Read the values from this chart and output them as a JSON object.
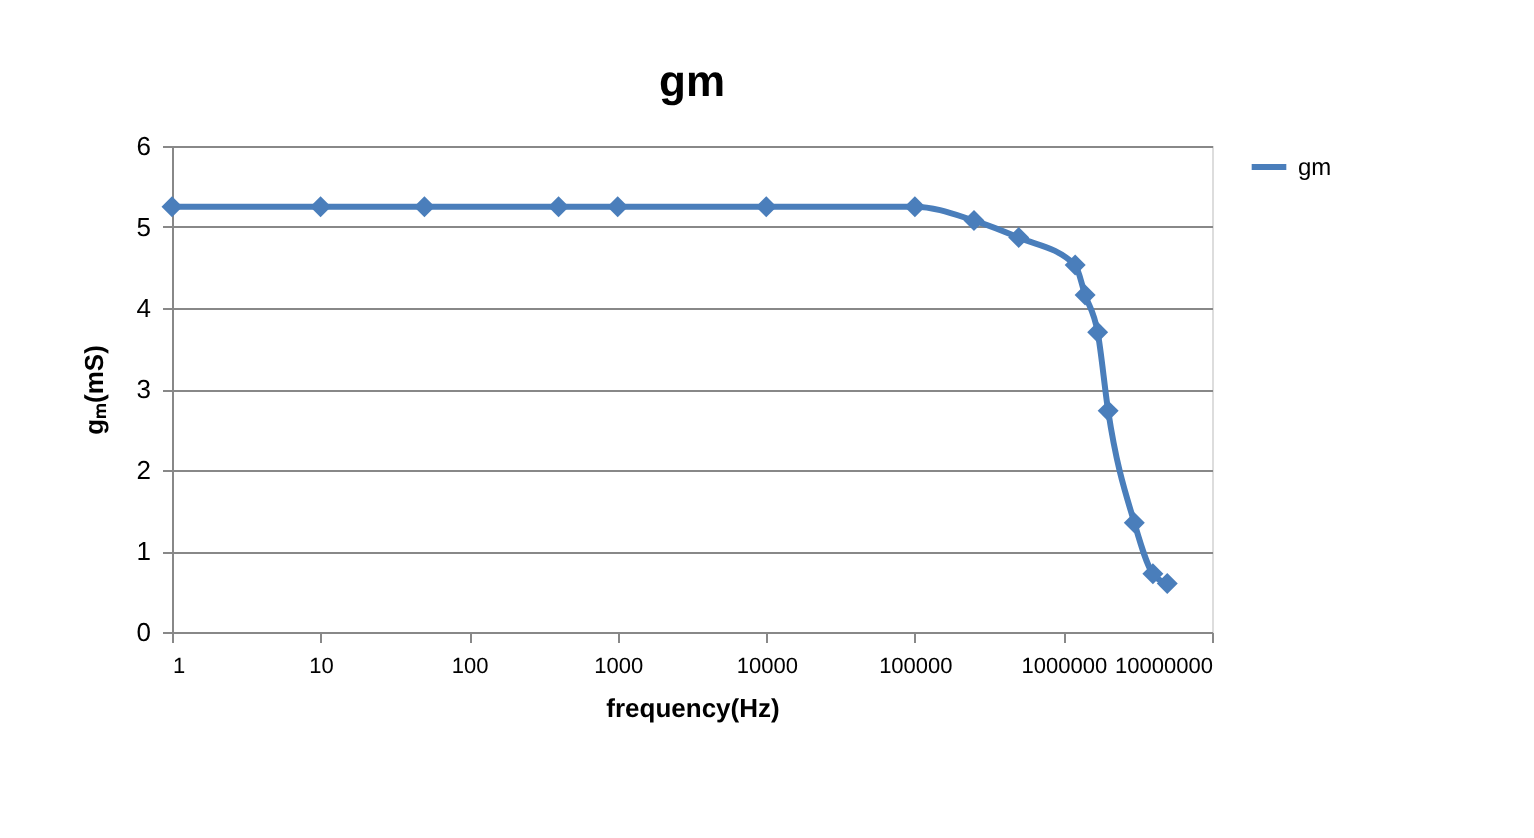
{
  "chart_data": {
    "type": "line",
    "title": "gm",
    "xlabel": "frequency(Hz)",
    "ylabel": "gₘ(mS)",
    "x": [
      1,
      10,
      50,
      400,
      1000,
      10000,
      100000,
      250000,
      500000,
      1200000,
      1400000,
      1700000,
      2000000,
      3000000,
      4000000,
      5000000
    ],
    "series": [
      {
        "name": "gm",
        "color": "#4a7ebb",
        "values": [
          5.25,
          5.25,
          5.25,
          5.25,
          5.25,
          5.25,
          5.25,
          5.08,
          4.87,
          4.53,
          4.16,
          3.7,
          2.73,
          1.35,
          0.72,
          0.6
        ]
      }
    ],
    "log": "x",
    "xlim": [
      1,
      10000000
    ],
    "xticks": [
      1,
      10,
      100,
      1000,
      10000,
      100000,
      1000000,
      10000000
    ],
    "ylim": [
      0,
      6
    ],
    "yticks": [
      0,
      1,
      2,
      3,
      4,
      5,
      6
    ],
    "grid": "y",
    "legend": "right",
    "marker": "diamond",
    "line_style": "solid"
  }
}
